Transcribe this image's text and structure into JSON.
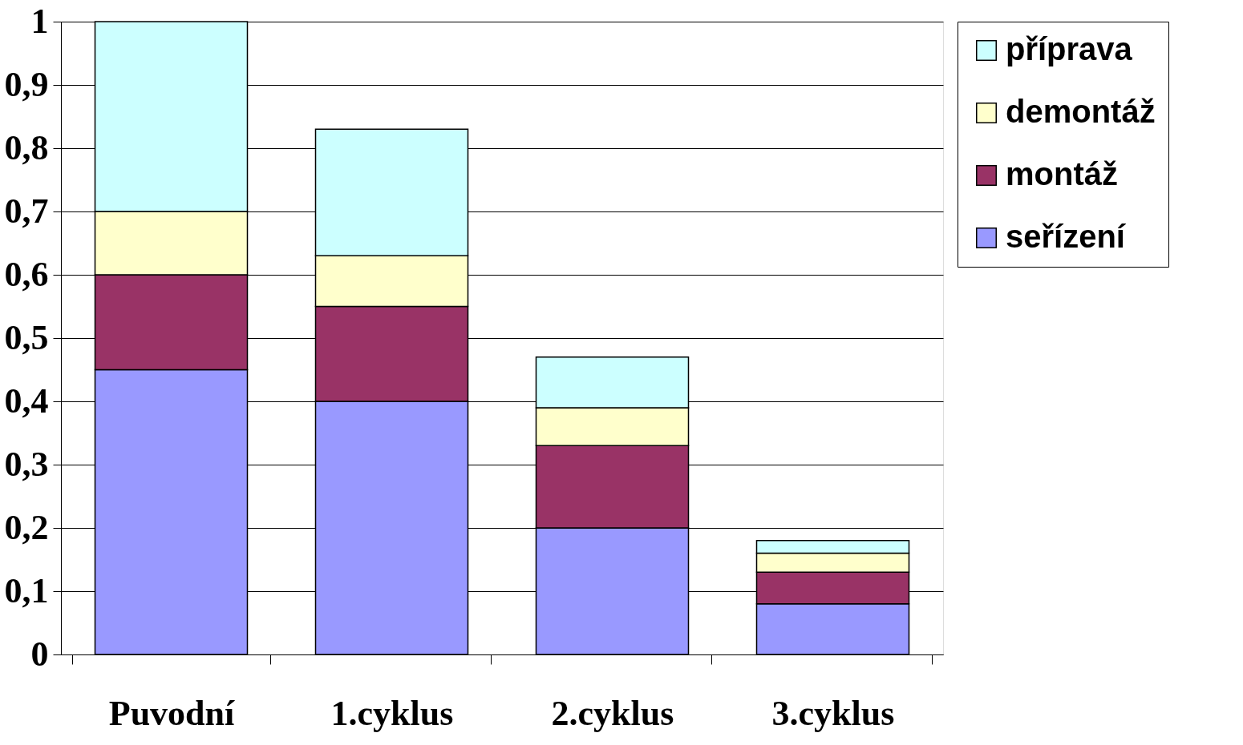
{
  "chart_data": {
    "type": "bar",
    "stacked": true,
    "categories": [
      "Puvodní",
      "1.cyklus",
      "2.cyklus",
      "3.cyklus"
    ],
    "series": [
      {
        "name": "seřízení",
        "color": "#9999ff",
        "values": [
          0.45,
          0.4,
          0.2,
          0.08
        ]
      },
      {
        "name": "montáž",
        "color": "#993366",
        "values": [
          0.15,
          0.15,
          0.13,
          0.05
        ]
      },
      {
        "name": "demontáž",
        "color": "#ffffcc",
        "values": [
          0.1,
          0.08,
          0.06,
          0.03
        ]
      },
      {
        "name": "příprava",
        "color": "#ccffff",
        "values": [
          0.3,
          0.2,
          0.08,
          0.02
        ]
      }
    ],
    "ylim": [
      0,
      1
    ],
    "yticks": [
      0,
      {
        "value": 0.1,
        "label": "0,1"
      },
      {
        "value": 0.2,
        "label": "0,2"
      },
      {
        "value": 0.3,
        "label": "0,3"
      },
      {
        "value": 0.4,
        "label": "0,4"
      },
      {
        "value": 0.5,
        "label": "0,5"
      },
      {
        "value": 0.6,
        "label": "0,6"
      },
      {
        "value": 0.7,
        "label": "0,7"
      },
      {
        "value": 0.8,
        "label": "0,8"
      },
      {
        "value": 0.9,
        "label": "0,9"
      },
      1
    ],
    "grid": "y",
    "legend": "right"
  }
}
